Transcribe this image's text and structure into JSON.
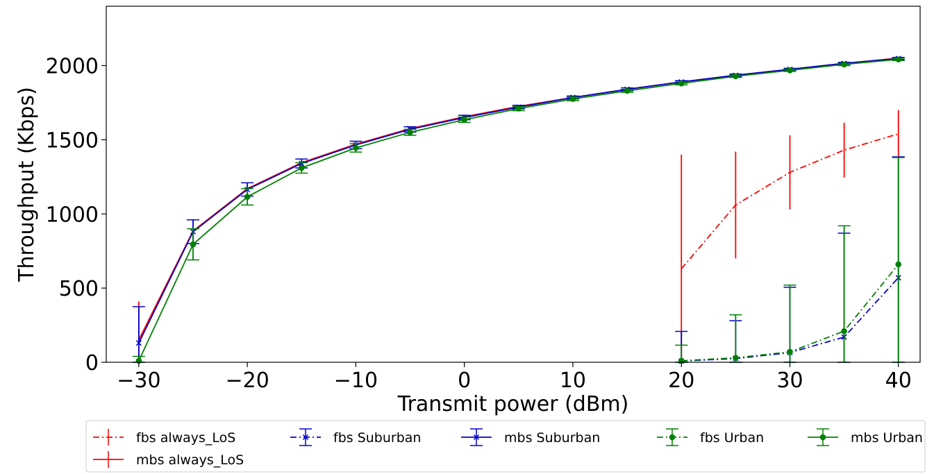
{
  "chart_data": {
    "type": "line",
    "title": "",
    "xlabel": "Transmit power (dBm)",
    "ylabel": "Throughput (Kbps)",
    "xlim": [
      -33,
      42
    ],
    "ylim": [
      0,
      2400
    ],
    "xticks": [
      -30,
      -20,
      -10,
      0,
      10,
      20,
      30,
      40
    ],
    "xtick_labels": [
      "−30",
      "−20",
      "−10",
      "0",
      "10",
      "20",
      "30",
      "40"
    ],
    "yticks": [
      0,
      500,
      1000,
      1500,
      2000
    ],
    "ytick_labels": [
      "0",
      "500",
      "1000",
      "1500",
      "2000"
    ],
    "grid": false,
    "legend_position": "below plot, two rows",
    "series": [
      {
        "name": "fbs always_LoS",
        "color": "#ff0000",
        "linestyle": "dashdot",
        "marker": "none",
        "x": [
          20,
          25,
          30,
          35,
          40
        ],
        "y": [
          630,
          1060,
          1280,
          1430,
          1540
        ],
        "err": [
          770,
          360,
          250,
          185,
          160
        ],
        "cap": false
      },
      {
        "name": "mbs always_LoS",
        "color": "#ff0000",
        "linestyle": "solid",
        "marker": "none",
        "x": [
          -30,
          -25,
          -20,
          -15,
          -10,
          -5,
          0,
          5,
          10,
          15,
          20,
          25,
          30,
          35,
          40
        ],
        "y": [
          150,
          885,
          1170,
          1345,
          1470,
          1575,
          1655,
          1725,
          1785,
          1840,
          1890,
          1935,
          1975,
          2015,
          2050
        ],
        "err": [
          260,
          0,
          0,
          0,
          0,
          0,
          0,
          0,
          0,
          0,
          0,
          0,
          0,
          0,
          0
        ],
        "cap": false
      },
      {
        "name": "fbs Suburban",
        "color": "#0000cc",
        "linestyle": "dashdot",
        "marker": "x",
        "x": [
          20,
          25,
          30,
          35,
          40
        ],
        "y": [
          8,
          25,
          65,
          170,
          570
        ],
        "err": [
          200,
          255,
          440,
          700,
          815
        ],
        "cap": true
      },
      {
        "name": "mbs Suburban",
        "color": "#0000cc",
        "linestyle": "solid",
        "marker": "x",
        "x": [
          -30,
          -25,
          -20,
          -15,
          -10,
          -5,
          0,
          5,
          10,
          15,
          20,
          25,
          30,
          35,
          40
        ],
        "y": [
          130,
          880,
          1165,
          1340,
          1465,
          1570,
          1650,
          1720,
          1785,
          1840,
          1890,
          1935,
          1975,
          2015,
          2048
        ],
        "err": [
          245,
          80,
          45,
          30,
          25,
          18,
          15,
          12,
          10,
          10,
          8,
          8,
          7,
          7,
          7
        ],
        "cap": true
      },
      {
        "name": "fbs Urban",
        "color": "#008000",
        "linestyle": "dashdot",
        "marker": "o",
        "x": [
          20,
          25,
          30,
          35,
          40
        ],
        "y": [
          10,
          30,
          70,
          210,
          660
        ],
        "err": [
          105,
          290,
          450,
          710,
          720
        ],
        "cap": true
      },
      {
        "name": "mbs Urban",
        "color": "#008000",
        "linestyle": "solid",
        "marker": "o",
        "x": [
          -30,
          -25,
          -20,
          -15,
          -10,
          -5,
          0,
          5,
          10,
          15,
          20,
          25,
          30,
          35,
          40
        ],
        "y": [
          10,
          795,
          1115,
          1310,
          1445,
          1550,
          1635,
          1710,
          1775,
          1830,
          1880,
          1928,
          1968,
          2008,
          2042
        ],
        "err": [
          30,
          105,
          55,
          35,
          28,
          20,
          18,
          14,
          12,
          10,
          10,
          8,
          8,
          8,
          8
        ],
        "cap": true
      }
    ]
  },
  "legend": {
    "items": [
      {
        "label": "fbs always_LoS"
      },
      {
        "label": "fbs Suburban"
      },
      {
        "label": "mbs Suburban"
      },
      {
        "label": "fbs Urban"
      },
      {
        "label": "mbs Urban"
      },
      {
        "label": "mbs always_LoS"
      }
    ]
  }
}
